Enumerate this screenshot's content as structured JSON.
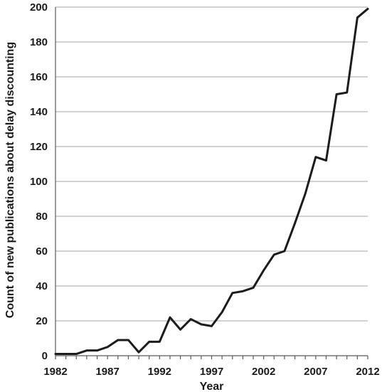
{
  "chart_data": {
    "type": "line",
    "title": "",
    "xlabel": "Year",
    "ylabel": "Count of new publications about delay discounting",
    "xlim": [
      1982,
      2012
    ],
    "ylim": [
      0,
      200
    ],
    "x_ticks": [
      1982,
      1987,
      1992,
      1997,
      2002,
      2007,
      2012
    ],
    "y_ticks": [
      0,
      20,
      40,
      60,
      80,
      100,
      120,
      140,
      160,
      180,
      200
    ],
    "grid": true,
    "series": [
      {
        "x": [
          1982,
          1983,
          1984,
          1985,
          1986,
          1987,
          1988,
          1989,
          1990,
          1991,
          1992,
          1993,
          1994,
          1995,
          1996,
          1997,
          1998,
          1999,
          2000,
          2001,
          2002,
          2003,
          2004,
          2005,
          2006,
          2007,
          2008,
          2009,
          2010,
          2011,
          2012
        ],
        "values": [
          1,
          1,
          1,
          3,
          3,
          5,
          9,
          9,
          2,
          8,
          8,
          22,
          15,
          21,
          18,
          17,
          25,
          36,
          37,
          39,
          49,
          58,
          60,
          76,
          93,
          114,
          112,
          150,
          151,
          194,
          199
        ],
        "color": "#1c1c1c"
      }
    ]
  }
}
